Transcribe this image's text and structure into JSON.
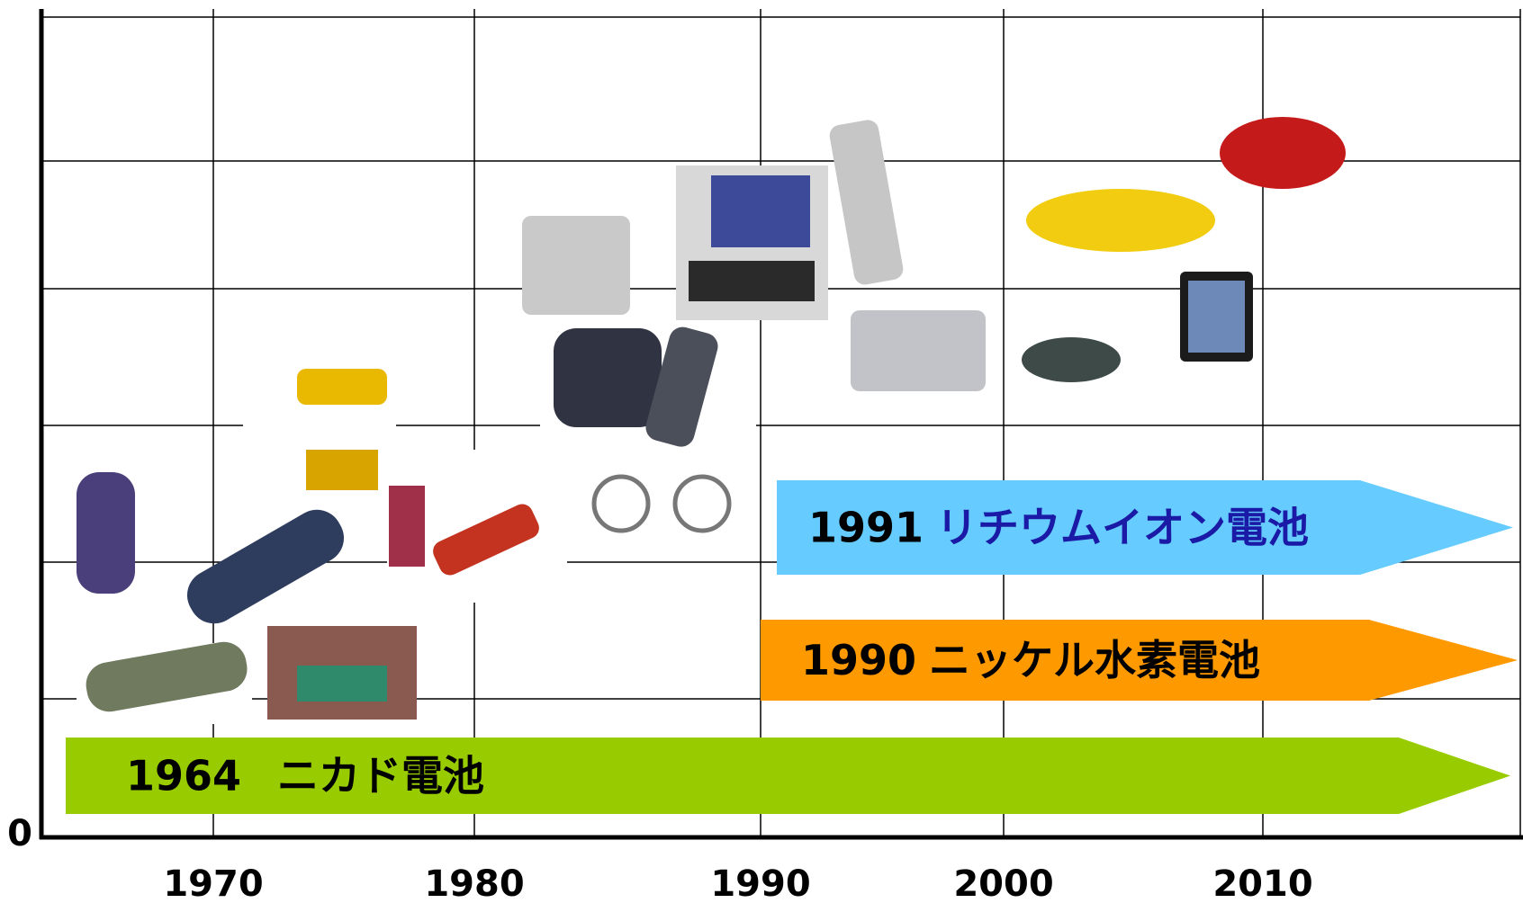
{
  "axis": {
    "origin_label": "0",
    "x_labels": [
      "1970",
      "1980",
      "1990",
      "2000",
      "2010"
    ]
  },
  "arrows": [
    {
      "year": "1964",
      "label": "ニカド電池"
    },
    {
      "year": "1990",
      "label": "ニッケル水素電池"
    },
    {
      "year": "1991",
      "label": "リチウムイオン電池"
    }
  ]
}
